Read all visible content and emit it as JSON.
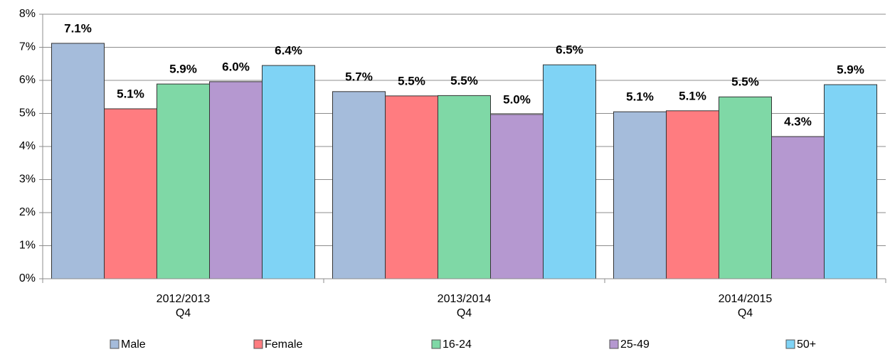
{
  "chart_data": {
    "type": "bar",
    "categories": [
      [
        "2012/2013",
        "Q4"
      ],
      [
        "2013/2014",
        "Q4"
      ],
      [
        "2014/2015",
        "Q4"
      ]
    ],
    "series": [
      {
        "name": "Male",
        "color": "#a5bcdb",
        "values": [
          7.12,
          5.66,
          5.05
        ],
        "value_labels": [
          "7.1%",
          "5.7%",
          "5.1%"
        ]
      },
      {
        "name": "Female",
        "color": "#ff7c80",
        "values": [
          5.14,
          5.53,
          5.08
        ],
        "value_labels": [
          "5.1%",
          "5.5%",
          "5.1%"
        ]
      },
      {
        "name": "16-24",
        "color": "#7fd8a6",
        "values": [
          5.89,
          5.54,
          5.5
        ],
        "value_labels": [
          "5.9%",
          "5.5%",
          "5.5%"
        ]
      },
      {
        "name": "25-49",
        "color": "#b598d0",
        "values": [
          5.96,
          4.97,
          4.3
        ],
        "value_labels": [
          "6.0%",
          "5.0%",
          "4.3%"
        ]
      },
      {
        "name": "50+",
        "color": "#7fd3f5",
        "values": [
          6.45,
          6.47,
          5.87
        ],
        "value_labels": [
          "6.4%",
          "6.5%",
          "5.9%"
        ]
      }
    ],
    "ylim": [
      0,
      8
    ],
    "yticks": [
      {
        "value": 0,
        "label": "0%"
      },
      {
        "value": 1,
        "label": "1%"
      },
      {
        "value": 2,
        "label": "2%"
      },
      {
        "value": 3,
        "label": "3%"
      },
      {
        "value": 4,
        "label": "4%"
      },
      {
        "value": 5,
        "label": "5%"
      },
      {
        "value": 6,
        "label": "6%"
      },
      {
        "value": 7,
        "label": "7%"
      },
      {
        "value": 8,
        "label": "8%"
      }
    ],
    "grid": true,
    "legend": "bottom"
  }
}
